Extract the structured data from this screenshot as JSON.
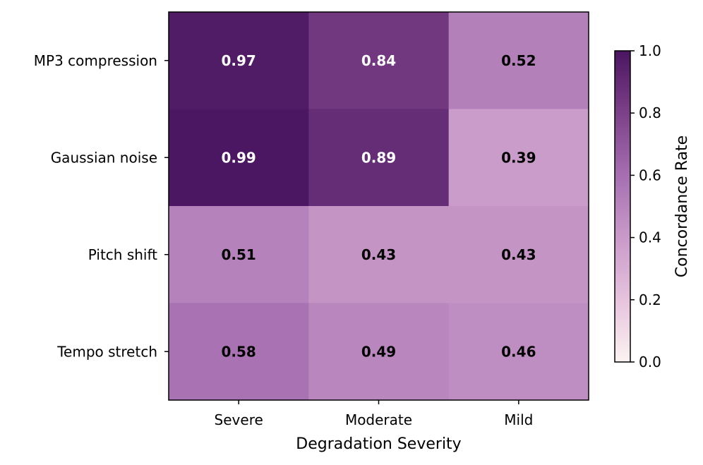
{
  "chart_data": {
    "type": "heatmap",
    "title": "",
    "xlabel": "Degradation Severity",
    "ylabel": "",
    "x_categories": [
      "Severe",
      "Moderate",
      "Mild"
    ],
    "y_categories": [
      "MP3 compression",
      "Gaussian noise",
      "Pitch shift",
      "Tempo stretch"
    ],
    "values": [
      [
        0.97,
        0.84,
        0.52
      ],
      [
        0.99,
        0.89,
        0.39
      ],
      [
        0.51,
        0.43,
        0.43
      ],
      [
        0.58,
        0.49,
        0.46
      ]
    ],
    "value_labels": [
      [
        "0.97",
        "0.84",
        "0.52"
      ],
      [
        "0.99",
        "0.89",
        "0.39"
      ],
      [
        "0.51",
        "0.43",
        "0.43"
      ],
      [
        "0.58",
        "0.49",
        "0.46"
      ]
    ],
    "colorbar": {
      "label": "Concordance Rate",
      "range": [
        0,
        1
      ],
      "ticks": [
        0.0,
        0.2,
        0.4,
        0.6,
        0.8,
        1.0
      ],
      "tick_labels": [
        "0.0",
        "0.2",
        "0.4",
        "0.6",
        "0.8",
        "1.0"
      ]
    },
    "colormap": {
      "stops": [
        "#fbf3f1",
        "#e6c3dd",
        "#c99ac9",
        "#a56fb0",
        "#7b4188",
        "#4a1560"
      ]
    },
    "grid": false
  }
}
